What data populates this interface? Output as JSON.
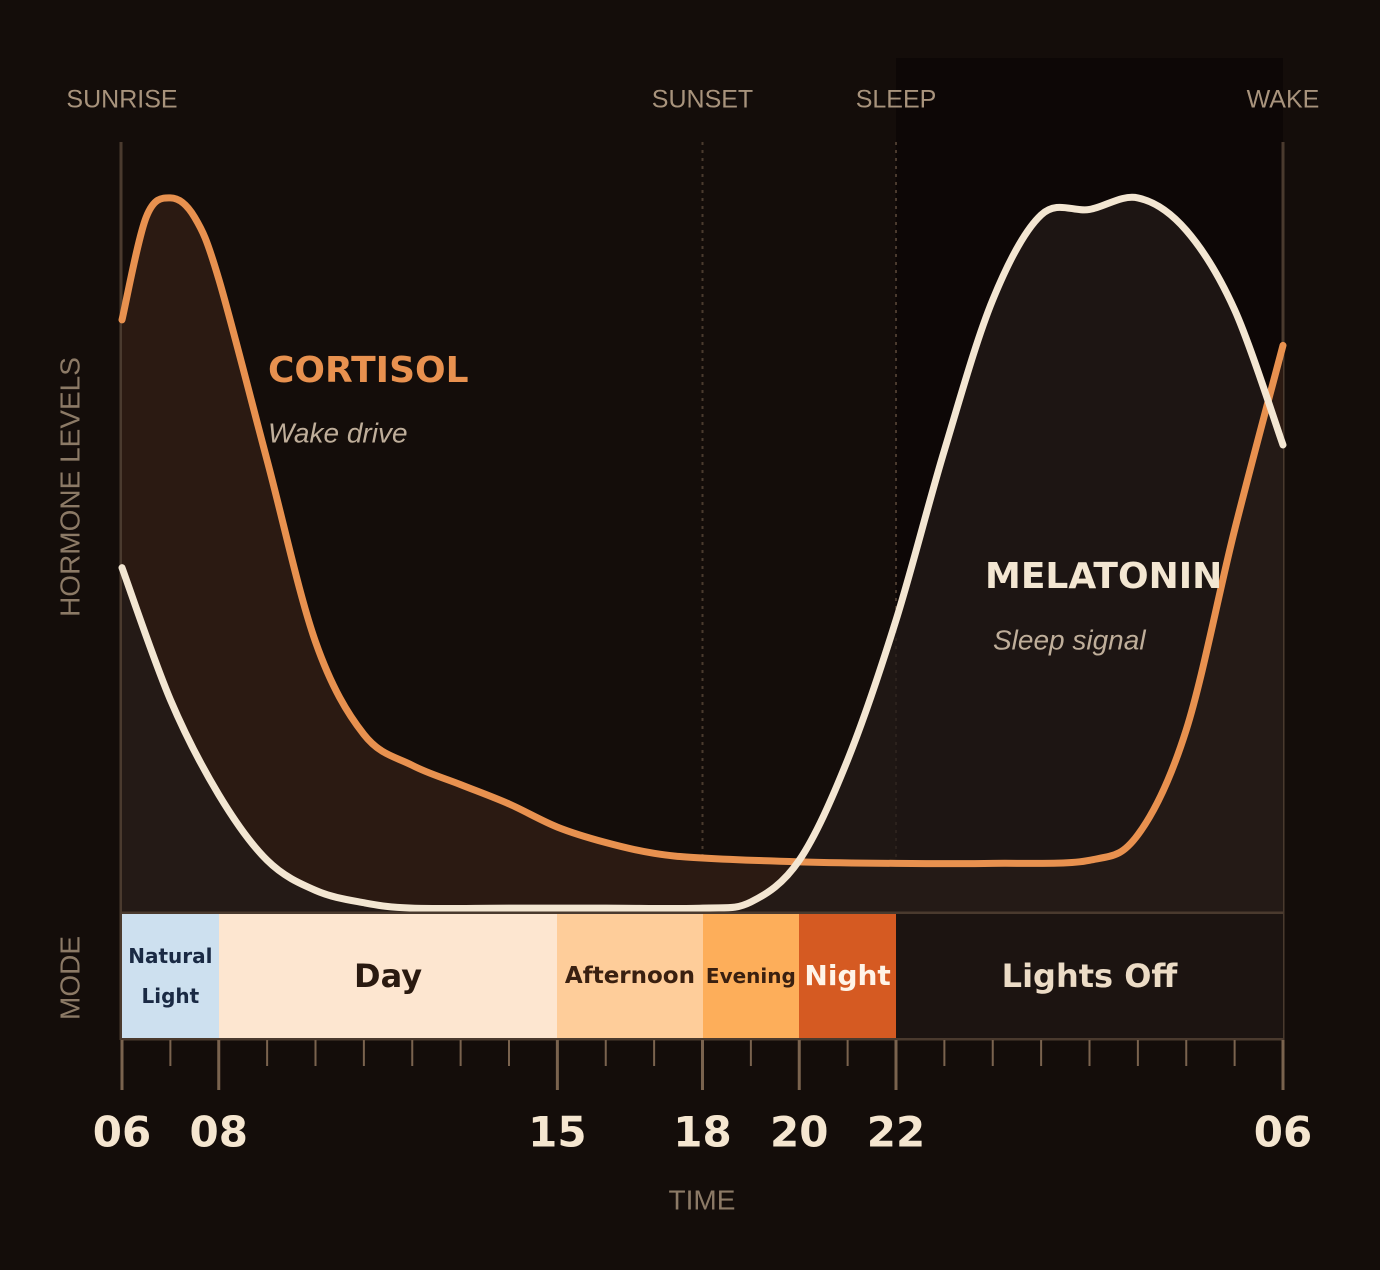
{
  "chart_data": {
    "type": "line",
    "xlabel": "TIME",
    "ylabel": "HORMONE LEVELS",
    "mode_label": "MODE",
    "xlim": [
      6,
      30
    ],
    "ylim": [
      0,
      100
    ],
    "xticks": [
      {
        "value": 6,
        "label": "06"
      },
      {
        "value": 8,
        "label": "08"
      },
      15,
      18,
      20,
      22,
      {
        "value": 30,
        "label": "06"
      }
    ],
    "minor_xticks": [
      7,
      9,
      10,
      11,
      12,
      13,
      14,
      16,
      17,
      19,
      21,
      23,
      24,
      25,
      26,
      27,
      28,
      29
    ],
    "markers": [
      {
        "x": 6,
        "label": "SUNRISE"
      },
      {
        "x": 18,
        "label": "SUNSET",
        "line": true
      },
      {
        "x": 22,
        "label": "SLEEP",
        "line": true
      },
      {
        "x": 30,
        "label": "WAKE"
      }
    ],
    "series": [
      {
        "name": "CORTISOL",
        "subtitle": "Wake drive",
        "color": "#e8914f",
        "fill": "#2b1a12",
        "x": [
          6,
          6.5,
          7,
          7.5,
          8,
          9,
          10,
          11,
          12,
          13,
          14,
          15,
          16,
          17,
          18,
          20,
          22,
          24,
          26,
          27,
          28,
          29,
          30
        ],
        "values": [
          76.7,
          90,
          92.5,
          90,
          82,
          58.5,
          35,
          23,
          19,
          16.5,
          14,
          11,
          9,
          7.6,
          7,
          6.5,
          6.3,
          6.3,
          6.7,
          10,
          23.6,
          49.5,
          73.4
        ]
      },
      {
        "name": "MELATONIN",
        "subtitle": "Sleep signal",
        "color": "#f3e6d2",
        "fill": "#231b18",
        "x": [
          6,
          7,
          8,
          9,
          10,
          11,
          12,
          14,
          16,
          18,
          19,
          20,
          21,
          22,
          23,
          24,
          25,
          26,
          27,
          28,
          29,
          30
        ],
        "values": [
          44.6,
          27.5,
          15.2,
          6.7,
          2.8,
          1.2,
          0.5,
          0.5,
          0.5,
          0.5,
          1.3,
          6.7,
          19.7,
          37.8,
          59.8,
          79.3,
          90.3,
          91,
          92.5,
          88.3,
          78,
          60.5
        ]
      }
    ],
    "modes": [
      {
        "start": 6,
        "end": 8,
        "label": "Natural Light",
        "color": "#cde0ef",
        "text_color": "#1a2a44"
      },
      {
        "start": 8,
        "end": 15,
        "label": "Day",
        "color": "#fde6d0",
        "text_color": "#2a1a10"
      },
      {
        "start": 15,
        "end": 18,
        "label": "Afternoon",
        "color": "#fecd9a",
        "text_color": "#3a2010"
      },
      {
        "start": 18,
        "end": 20,
        "label": "Evening",
        "color": "#fdae5a",
        "text_color": "#3a2010"
      },
      {
        "start": 20,
        "end": 22,
        "label": "Night",
        "color": "#d55a22",
        "text_color": "#fff4e8"
      },
      {
        "start": 22,
        "end": 30,
        "label": "Lights Off",
        "color": "#1c1411",
        "text_color": "#ecdcc6"
      }
    ]
  }
}
